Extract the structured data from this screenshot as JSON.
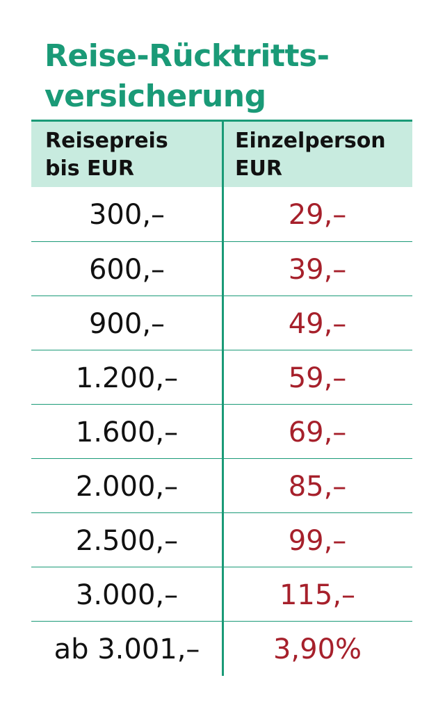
{
  "header": {
    "title_lines": [
      "Reise-Rücktritts-",
      "versicherung"
    ]
  },
  "table": {
    "columns": [
      [
        "Reisepreis",
        "bis EUR"
      ],
      [
        "Einzelperson",
        "EUR"
      ]
    ],
    "rows": [
      [
        "300,–",
        "29,–"
      ],
      [
        "600,–",
        "39,–"
      ],
      [
        "900,–",
        "49,–"
      ],
      [
        "1.200,–",
        "59,–"
      ],
      [
        "1.600,–",
        "69,–"
      ],
      [
        "2.000,–",
        "85,–"
      ],
      [
        "2.500,–",
        "99,–"
      ],
      [
        "3.000,–",
        "115,–"
      ],
      [
        "ab 3.001,–",
        "3,90%"
      ]
    ]
  }
}
